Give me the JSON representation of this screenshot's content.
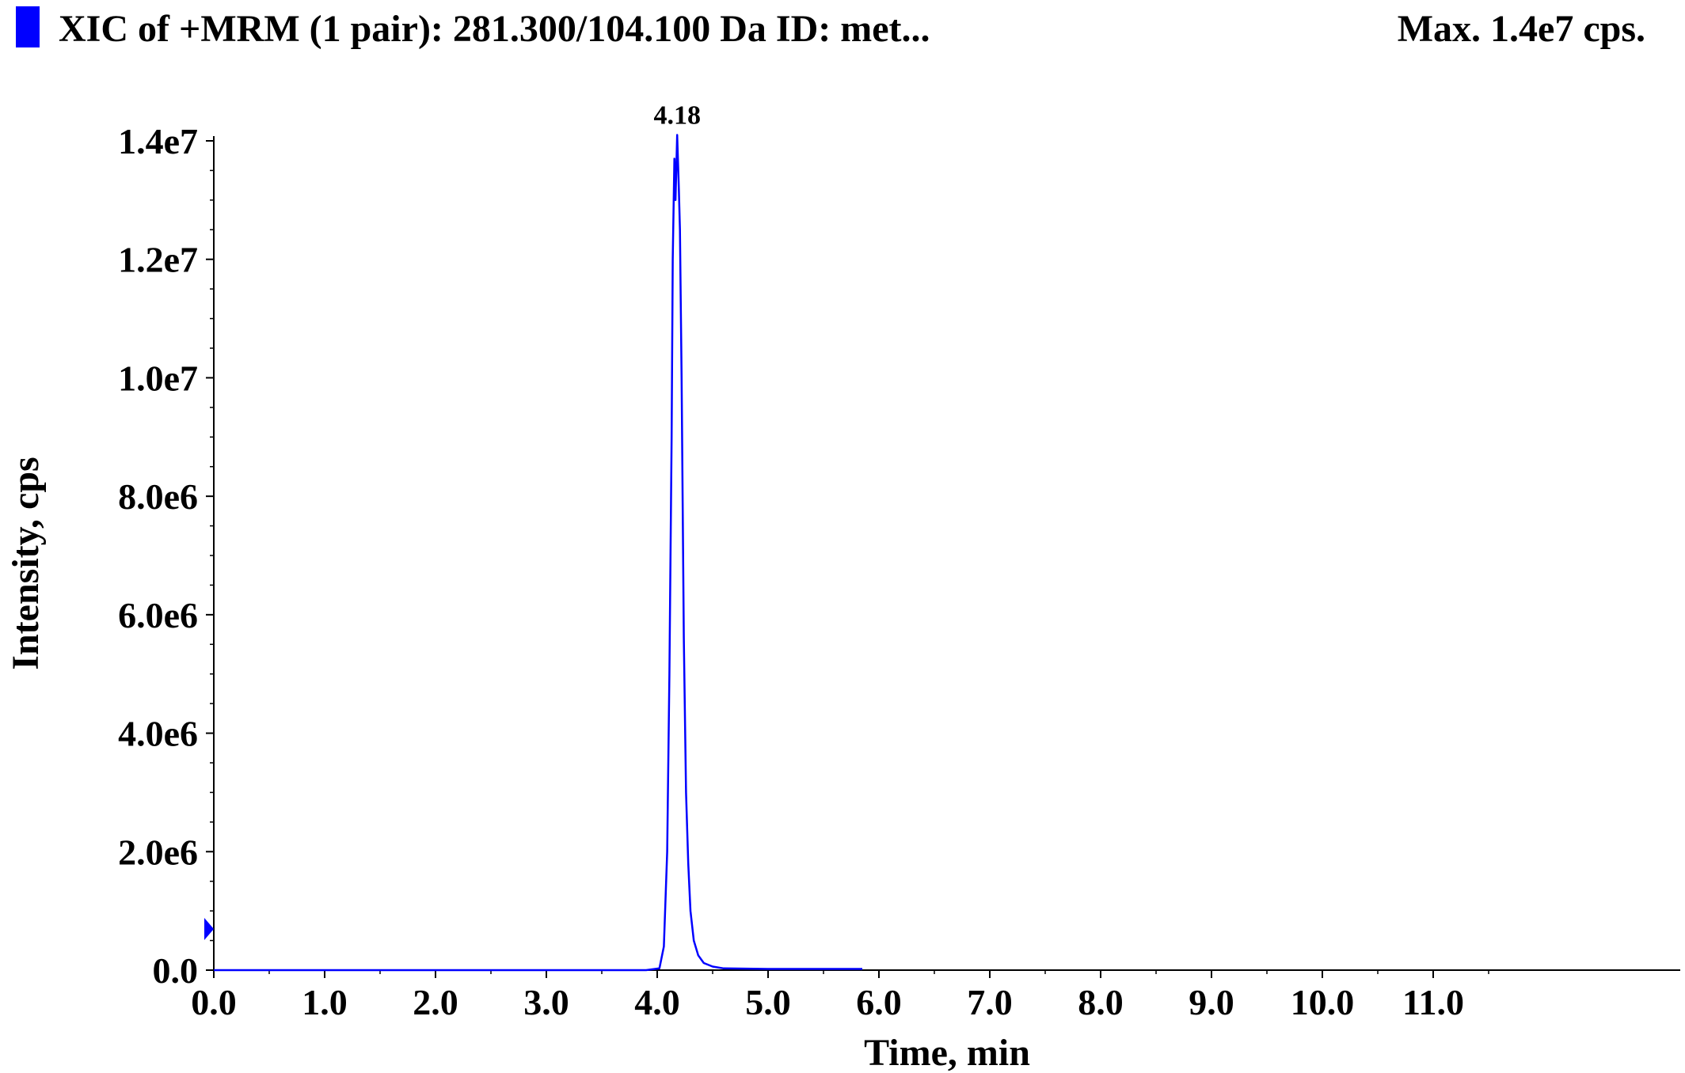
{
  "header": {
    "title": "XIC of +MRM (1 pair): 281.300/104.100 Da ID: met...",
    "max_label": "Max. 1.4e7 cps.",
    "legend_color": "#0000ff"
  },
  "chart_data": {
    "type": "line",
    "xlabel": "Time, min",
    "ylabel": "Intensity, cps",
    "xlim": [
      0,
      12.0
    ],
    "ylim": [
      0,
      14000000
    ],
    "x_ticks": [
      "0.0",
      "1.0",
      "2.0",
      "3.0",
      "4.0",
      "5.0",
      "6.0",
      "7.0",
      "8.0",
      "9.0",
      "10.0",
      "11.0"
    ],
    "y_ticks": [
      "0.0",
      "2.0e6",
      "4.0e6",
      "6.0e6",
      "8.0e6",
      "1.0e7",
      "1.2e7",
      "1.4e7"
    ],
    "grid": false,
    "series": [
      {
        "color": "#0000ff",
        "x": [
          0.0,
          3.9,
          4.02,
          4.06,
          4.09,
          4.11,
          4.13,
          4.14,
          4.155,
          4.165,
          4.18,
          4.195,
          4.205,
          4.22,
          4.24,
          4.26,
          4.28,
          4.3,
          4.33,
          4.37,
          4.42,
          4.5,
          4.6,
          5.0,
          5.5,
          5.85
        ],
        "y": [
          0,
          0,
          30000,
          400000,
          2000000,
          5000000,
          9000000,
          12000000,
          13700000,
          13000000,
          14100000,
          13200000,
          12500000,
          10000000,
          5600000,
          3000000,
          1800000,
          1000000,
          500000,
          250000,
          120000,
          60000,
          30000,
          20000,
          20000,
          20000
        ]
      }
    ],
    "annotations": [
      {
        "text": "4.18",
        "x": 4.18,
        "y": 14100000
      }
    ]
  }
}
